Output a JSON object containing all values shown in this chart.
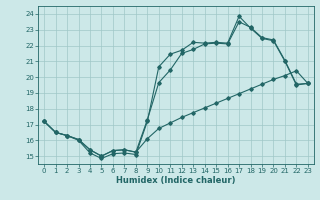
{
  "xlabel": "Humidex (Indice chaleur)",
  "xlim": [
    -0.5,
    23.5
  ],
  "ylim": [
    14.5,
    24.5
  ],
  "xticks": [
    0,
    1,
    2,
    3,
    4,
    5,
    6,
    7,
    8,
    9,
    10,
    11,
    12,
    13,
    14,
    15,
    16,
    17,
    18,
    19,
    20,
    21,
    22,
    23
  ],
  "yticks": [
    15,
    16,
    17,
    18,
    19,
    20,
    21,
    22,
    23,
    24
  ],
  "bg_color": "#cce8e8",
  "grid_color": "#a0c8c8",
  "line_color": "#226666",
  "line1_x": [
    0,
    1,
    2,
    3,
    4,
    5,
    6,
    7,
    8,
    9,
    10,
    11,
    12,
    13,
    14,
    15,
    16,
    17,
    18,
    19,
    20,
    21,
    22,
    23
  ],
  "line1_y": [
    17.2,
    16.5,
    16.3,
    16.0,
    15.2,
    14.85,
    15.15,
    15.2,
    15.1,
    17.2,
    20.65,
    21.45,
    21.7,
    22.2,
    22.15,
    22.2,
    22.15,
    23.85,
    23.1,
    22.45,
    22.3,
    21.0,
    19.5,
    19.6
  ],
  "line2_x": [
    0,
    1,
    2,
    3,
    4,
    5,
    6,
    7,
    8,
    9,
    10,
    11,
    12,
    13,
    14,
    15,
    16,
    17,
    18,
    19,
    20,
    21,
    22,
    23
  ],
  "line2_y": [
    17.2,
    16.5,
    16.3,
    16.05,
    15.4,
    15.0,
    15.35,
    15.4,
    15.25,
    17.3,
    19.65,
    20.45,
    21.5,
    21.75,
    22.1,
    22.15,
    22.1,
    23.5,
    23.15,
    22.5,
    22.35,
    21.05,
    19.55,
    19.6
  ],
  "line3_x": [
    0,
    1,
    2,
    3,
    4,
    5,
    6,
    7,
    8,
    9,
    10,
    11,
    12,
    13,
    14,
    15,
    16,
    17,
    18,
    19,
    20,
    21,
    22,
    23
  ],
  "line3_y": [
    17.2,
    16.5,
    16.3,
    16.05,
    15.4,
    15.0,
    15.35,
    15.4,
    15.25,
    16.1,
    16.75,
    17.1,
    17.45,
    17.75,
    18.05,
    18.35,
    18.65,
    18.95,
    19.25,
    19.55,
    19.85,
    20.1,
    20.4,
    19.6
  ]
}
